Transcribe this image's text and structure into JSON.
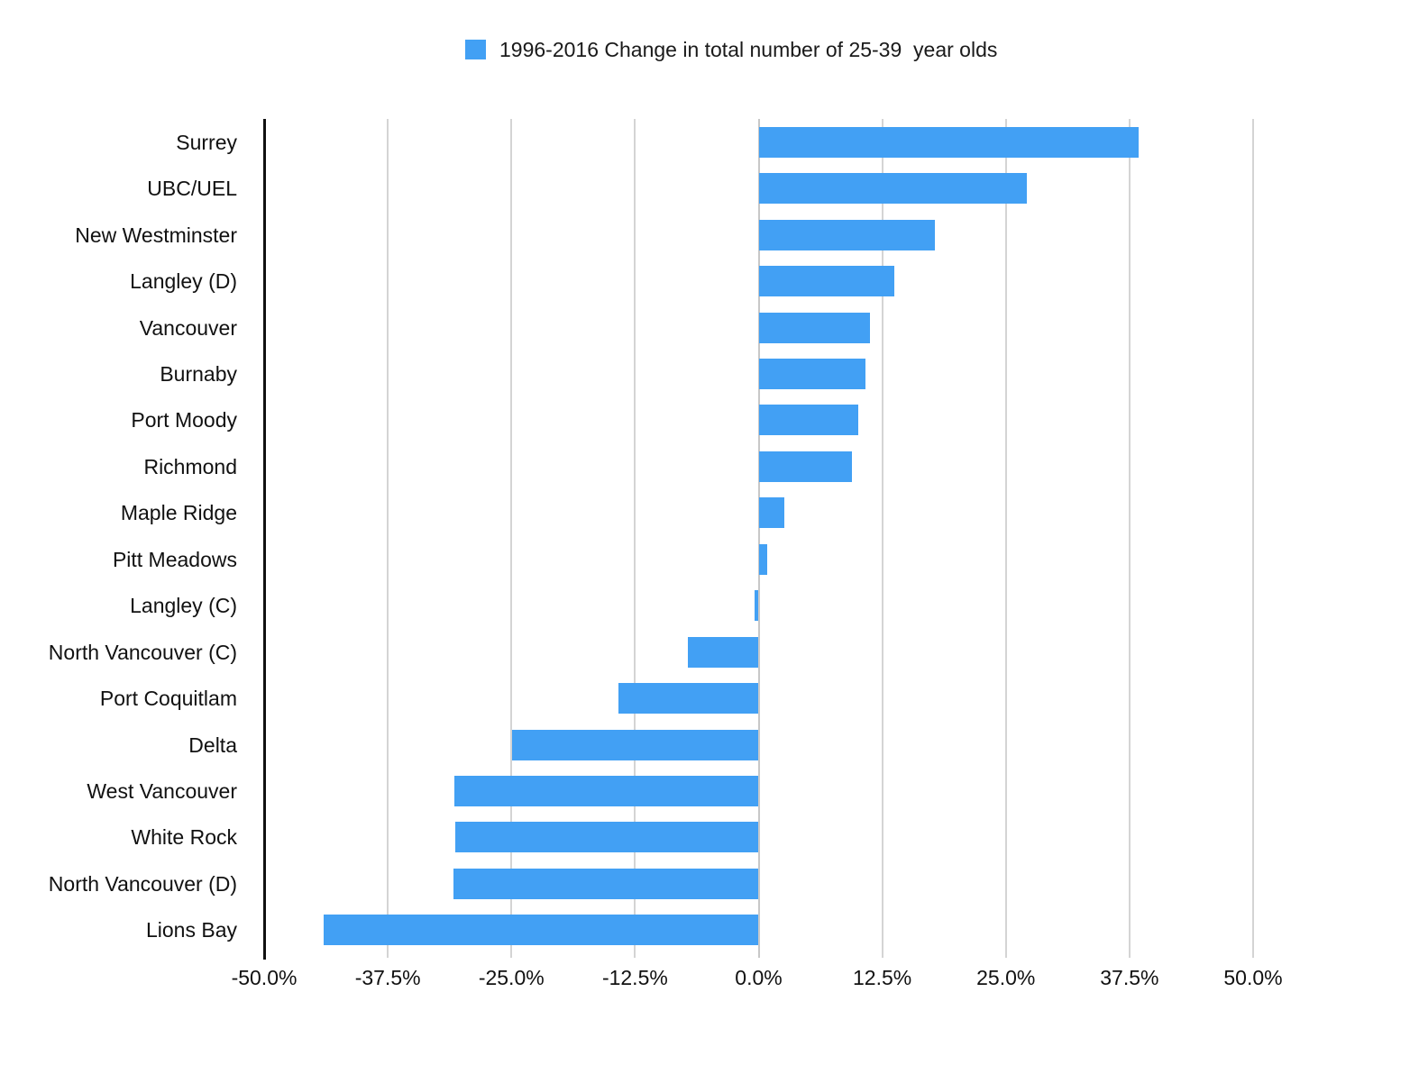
{
  "legend": {
    "label": "1996-2016 Change in total number of 25-39  year olds"
  },
  "colors": {
    "bar": "#42A0F4",
    "grid": "#D4D4D4",
    "zero_line": "#C8C8C8",
    "axis": "#111111",
    "text": "#1A1A1A",
    "background": "#FFFFFF"
  },
  "chart_data": {
    "type": "bar",
    "orientation": "horizontal",
    "legend_label": "1996-2016 Change in total number of 25-39  year olds",
    "categories": [
      "Surrey",
      "UBC/UEL",
      "New Westminster",
      "Langley (D)",
      "Vancouver",
      "Burnaby",
      "Port Moody",
      "Richmond",
      "Maple Ridge",
      "Pitt Meadows",
      "Langley (C)",
      "North Vancouver (C)",
      "Port Coquitlam",
      "Delta",
      "West Vancouver",
      "White Rock",
      "North Vancouver (D)",
      "Lions Bay"
    ],
    "values": [
      38.4,
      27.1,
      17.8,
      13.7,
      11.3,
      10.8,
      10.1,
      9.4,
      2.6,
      0.9,
      -0.4,
      -7.2,
      -14.2,
      -24.9,
      -30.8,
      -30.7,
      -30.9,
      -44.0
    ],
    "unit": "%",
    "xlim": [
      -50,
      50
    ],
    "xticks": [
      -50,
      -37.5,
      -25,
      -12.5,
      0,
      12.5,
      25,
      37.5,
      50
    ],
    "xtick_labels": [
      "-50.0%",
      "-37.5%",
      "-25.0%",
      "-12.5%",
      "0.0%",
      "12.5%",
      "25.0%",
      "37.5%",
      "50.0%"
    ],
    "grid": true,
    "legend_position": "top",
    "bar_color": "#42A0F4",
    "ylabel": "",
    "xlabel": ""
  }
}
